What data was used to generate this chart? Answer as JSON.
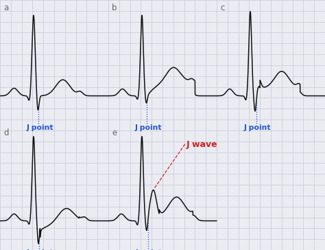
{
  "background_color": "#eaecf2",
  "grid_color": "#c5c8d8",
  "ecg_color": "#111111",
  "j_point_color": "#2255cc",
  "j_wave_color": "#cc2222",
  "panels": [
    "a",
    "b",
    "c",
    "d",
    "e"
  ],
  "fig_width": 4.74,
  "fig_height": 3.64,
  "dpi": 100
}
